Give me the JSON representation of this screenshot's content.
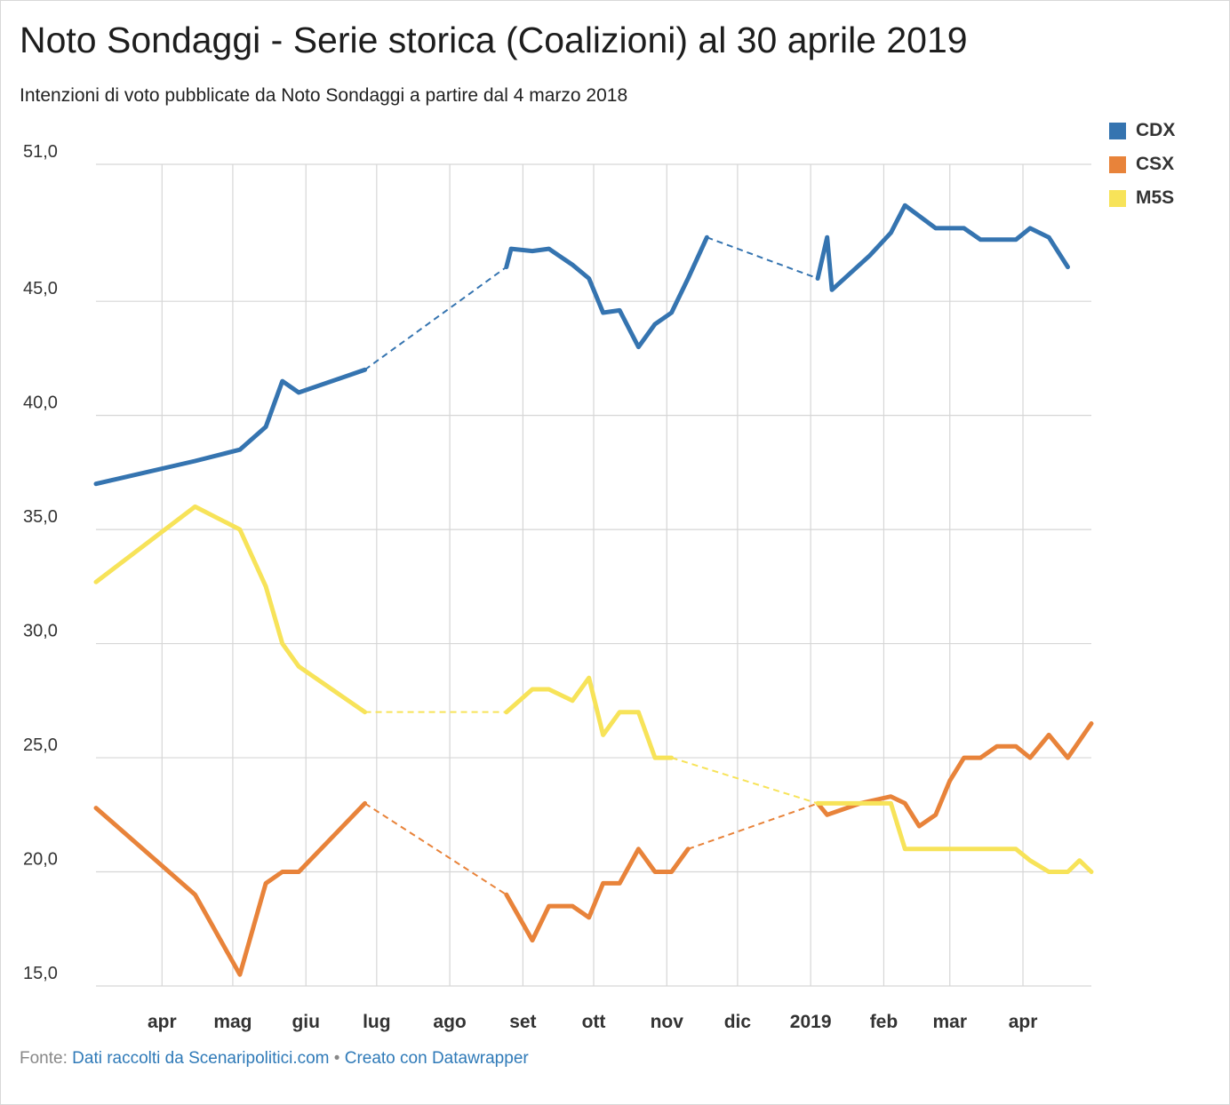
{
  "title": "Noto Sondaggi - Serie storica (Coalizioni) al 30 aprile 2019",
  "subtitle": "Intenzioni di voto pubblicate da Noto Sondaggi a partire dal 4 marzo 2018",
  "footer": {
    "source_label": "Fonte:",
    "source_link": "Dati raccolti da Scenaripolitici.com",
    "separator": "•",
    "made_with": "Creato con Datawrapper"
  },
  "legend": [
    {
      "name": "CDX",
      "color": "#3574b0"
    },
    {
      "name": "CSX",
      "color": "#e8833a"
    },
    {
      "name": "M5S",
      "color": "#f7e359"
    }
  ],
  "chart_data": {
    "type": "line",
    "title": "Noto Sondaggi - Serie storica (Coalizioni) al 30 aprile 2019",
    "subtitle": "Intenzioni di voto pubblicate da Noto Sondaggi a partire dal 4 marzo 2018",
    "ylim": [
      15,
      51
    ],
    "yticks": [
      "51,0",
      "45,0",
      "40,0",
      "35,0",
      "30,0",
      "25,0",
      "20,0",
      "15,0"
    ],
    "ytick_values": [
      51,
      45,
      40,
      35,
      30,
      25,
      20,
      15
    ],
    "xlim": [
      "2018-03-04",
      "2019-04-30"
    ],
    "xticks": [
      {
        "label": "apr",
        "date": "2018-04-01"
      },
      {
        "label": "mag",
        "date": "2018-05-01"
      },
      {
        "label": "giu",
        "date": "2018-06-01"
      },
      {
        "label": "lug",
        "date": "2018-07-01"
      },
      {
        "label": "ago",
        "date": "2018-08-01"
      },
      {
        "label": "set",
        "date": "2018-09-01"
      },
      {
        "label": "ott",
        "date": "2018-10-01"
      },
      {
        "label": "nov",
        "date": "2018-11-01"
      },
      {
        "label": "dic",
        "date": "2018-12-01"
      },
      {
        "label": "2019",
        "date": "2019-01-01"
      },
      {
        "label": "feb",
        "date": "2019-02-01"
      },
      {
        "label": "mar",
        "date": "2019-03-01"
      },
      {
        "label": "apr",
        "date": "2019-04-01"
      }
    ],
    "grid": true,
    "legend_position": "top-right",
    "series": [
      {
        "name": "CDX",
        "color": "#3574b0",
        "values": [
          [
            "2018-03-04",
            37.0
          ],
          [
            "2018-04-15",
            38.0
          ],
          [
            "2018-05-04",
            38.5
          ],
          [
            "2018-05-15",
            39.5
          ],
          [
            "2018-05-22",
            41.5
          ],
          [
            "2018-05-29",
            41.0
          ],
          [
            "2018-06-26",
            42.0
          ],
          null,
          [
            "2018-08-25",
            46.5
          ],
          [
            "2018-08-27",
            47.3
          ],
          [
            "2018-09-05",
            47.2
          ],
          [
            "2018-09-12",
            47.3
          ],
          [
            "2018-09-22",
            46.6
          ],
          [
            "2018-09-29",
            46.0
          ],
          [
            "2018-10-05",
            44.5
          ],
          [
            "2018-10-12",
            44.6
          ],
          [
            "2018-10-20",
            43.0
          ],
          [
            "2018-10-27",
            44.0
          ],
          [
            "2018-11-03",
            44.5
          ],
          [
            "2018-11-10",
            46.0
          ],
          [
            "2018-11-18",
            47.8
          ],
          null,
          [
            "2019-01-04",
            46.0
          ],
          [
            "2019-01-08",
            47.8
          ],
          [
            "2019-01-10",
            45.5
          ],
          [
            "2019-01-26",
            47.0
          ],
          [
            "2019-02-04",
            48.0
          ],
          [
            "2019-02-10",
            49.2
          ],
          [
            "2019-02-23",
            48.2
          ],
          [
            "2019-03-07",
            48.2
          ],
          [
            "2019-03-14",
            47.7
          ],
          [
            "2019-03-29",
            47.7
          ],
          [
            "2019-04-04",
            48.2
          ],
          [
            "2019-04-12",
            47.8
          ],
          [
            "2019-04-20",
            46.5
          ]
        ]
      },
      {
        "name": "CSX",
        "color": "#e8833a",
        "values": [
          [
            "2018-03-04",
            22.8
          ],
          [
            "2018-04-15",
            19.0
          ],
          [
            "2018-05-04",
            15.5
          ],
          [
            "2018-05-15",
            19.5
          ],
          [
            "2018-05-22",
            20.0
          ],
          [
            "2018-05-29",
            20.0
          ],
          [
            "2018-06-26",
            23.0
          ],
          null,
          [
            "2018-08-25",
            19.0
          ],
          [
            "2018-09-05",
            17.0
          ],
          [
            "2018-09-12",
            18.5
          ],
          [
            "2018-09-22",
            18.5
          ],
          [
            "2018-09-29",
            18.0
          ],
          [
            "2018-10-05",
            19.5
          ],
          [
            "2018-10-12",
            19.5
          ],
          [
            "2018-10-20",
            21.0
          ],
          [
            "2018-10-27",
            20.0
          ],
          [
            "2018-11-03",
            20.0
          ],
          [
            "2018-11-10",
            21.0
          ],
          null,
          [
            "2019-01-04",
            23.0
          ],
          [
            "2019-01-08",
            22.5
          ],
          [
            "2019-01-22",
            23.0
          ],
          [
            "2019-02-04",
            23.3
          ],
          [
            "2019-02-10",
            23.0
          ],
          [
            "2019-02-16",
            22.0
          ],
          [
            "2019-02-23",
            22.5
          ],
          [
            "2019-03-01",
            24.0
          ],
          [
            "2019-03-07",
            25.0
          ],
          [
            "2019-03-14",
            25.0
          ],
          [
            "2019-03-21",
            25.5
          ],
          [
            "2019-03-29",
            25.5
          ],
          [
            "2019-04-04",
            25.0
          ],
          [
            "2019-04-12",
            26.0
          ],
          [
            "2019-04-20",
            25.0
          ],
          [
            "2019-04-30",
            26.5
          ]
        ]
      },
      {
        "name": "M5S",
        "color": "#f7e359",
        "values": [
          [
            "2018-03-04",
            32.7
          ],
          [
            "2018-04-15",
            36.0
          ],
          [
            "2018-05-04",
            35.0
          ],
          [
            "2018-05-15",
            32.5
          ],
          [
            "2018-05-22",
            30.0
          ],
          [
            "2018-05-29",
            29.0
          ],
          [
            "2018-06-26",
            27.0
          ],
          null,
          [
            "2018-08-25",
            27.0
          ],
          [
            "2018-09-05",
            28.0
          ],
          [
            "2018-09-12",
            28.0
          ],
          [
            "2018-09-22",
            27.5
          ],
          [
            "2018-09-29",
            28.5
          ],
          [
            "2018-10-05",
            26.0
          ],
          [
            "2018-10-12",
            27.0
          ],
          [
            "2018-10-20",
            27.0
          ],
          [
            "2018-10-27",
            25.0
          ],
          [
            "2018-11-03",
            25.0
          ],
          null,
          [
            "2019-01-04",
            23.0
          ],
          [
            "2019-02-04",
            23.0
          ],
          [
            "2019-02-10",
            21.0
          ],
          [
            "2019-02-23",
            21.0
          ],
          [
            "2019-03-07",
            21.0
          ],
          [
            "2019-03-29",
            21.0
          ],
          [
            "2019-04-04",
            20.5
          ],
          [
            "2019-04-12",
            20.0
          ],
          [
            "2019-04-20",
            20.0
          ],
          [
            "2019-04-25",
            20.5
          ],
          [
            "2019-04-30",
            20.0
          ]
        ]
      }
    ]
  }
}
